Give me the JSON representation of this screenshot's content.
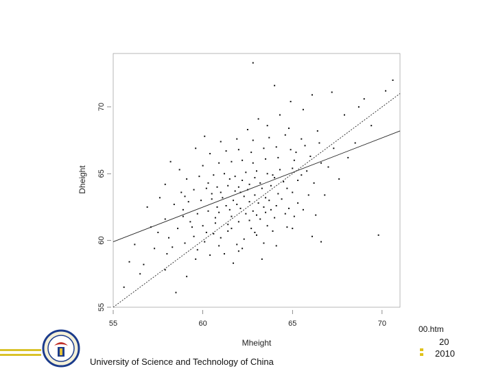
{
  "chart_data": {
    "type": "scatter",
    "xlabel": "Mheight",
    "ylabel": "Dheight",
    "xlim": [
      55,
      71
    ],
    "ylim": [
      55,
      74
    ],
    "x_ticks": [
      "55",
      "60",
      "65",
      "70"
    ],
    "y_ticks": [
      "55",
      "60",
      "65",
      "70"
    ],
    "grid": false,
    "points": [
      [
        58.5,
        56.1
      ],
      [
        59.1,
        57.3
      ],
      [
        57.9,
        57.8
      ],
      [
        56.7,
        58.2
      ],
      [
        59.6,
        58.6
      ],
      [
        60.4,
        58.9
      ],
      [
        61.2,
        59.0
      ],
      [
        62.0,
        59.2
      ],
      [
        58.3,
        59.5
      ],
      [
        59.0,
        59.8
      ],
      [
        60.1,
        59.9
      ],
      [
        61.0,
        60.2
      ],
      [
        62.3,
        60.1
      ],
      [
        63.0,
        60.4
      ],
      [
        63.9,
        60.7
      ],
      [
        57.5,
        60.6
      ],
      [
        58.6,
        60.9
      ],
      [
        59.4,
        61.0
      ],
      [
        60.0,
        61.1
      ],
      [
        60.7,
        61.3
      ],
      [
        61.4,
        61.2
      ],
      [
        62.0,
        61.4
      ],
      [
        62.6,
        61.5
      ],
      [
        63.2,
        61.6
      ],
      [
        64.0,
        61.7
      ],
      [
        65.1,
        61.8
      ],
      [
        66.3,
        61.9
      ],
      [
        57.9,
        61.6
      ],
      [
        58.9,
        61.8
      ],
      [
        59.7,
        62.0
      ],
      [
        60.3,
        62.2
      ],
      [
        60.9,
        62.1
      ],
      [
        61.5,
        62.3
      ],
      [
        62.1,
        62.4
      ],
      [
        62.8,
        62.2
      ],
      [
        63.4,
        62.5
      ],
      [
        64.1,
        62.6
      ],
      [
        64.8,
        62.4
      ],
      [
        58.4,
        62.7
      ],
      [
        59.2,
        62.9
      ],
      [
        59.9,
        63.0
      ],
      [
        60.5,
        63.1
      ],
      [
        61.1,
        63.2
      ],
      [
        61.7,
        63.0
      ],
      [
        62.3,
        63.3
      ],
      [
        62.9,
        63.4
      ],
      [
        63.5,
        63.2
      ],
      [
        64.2,
        63.5
      ],
      [
        65.0,
        63.6
      ],
      [
        65.9,
        63.4
      ],
      [
        57.6,
        63.2
      ],
      [
        58.8,
        63.6
      ],
      [
        59.5,
        63.8
      ],
      [
        60.2,
        63.9
      ],
      [
        60.8,
        64.0
      ],
      [
        61.4,
        64.1
      ],
      [
        62.0,
        64.0
      ],
      [
        62.6,
        64.2
      ],
      [
        63.2,
        64.3
      ],
      [
        63.8,
        64.1
      ],
      [
        64.5,
        64.4
      ],
      [
        65.3,
        64.5
      ],
      [
        66.2,
        64.3
      ],
      [
        59.1,
        64.6
      ],
      [
        59.8,
        64.8
      ],
      [
        60.6,
        64.9
      ],
      [
        61.2,
        65.0
      ],
      [
        61.8,
        64.8
      ],
      [
        62.4,
        65.1
      ],
      [
        63.0,
        65.2
      ],
      [
        63.6,
        65.0
      ],
      [
        64.3,
        65.3
      ],
      [
        65.0,
        65.4
      ],
      [
        65.8,
        65.2
      ],
      [
        67.0,
        65.5
      ],
      [
        58.7,
        65.3
      ],
      [
        60.0,
        65.6
      ],
      [
        60.9,
        65.8
      ],
      [
        61.6,
        65.9
      ],
      [
        62.2,
        66.0
      ],
      [
        62.8,
        65.8
      ],
      [
        63.5,
        66.1
      ],
      [
        64.2,
        66.2
      ],
      [
        65.1,
        66.0
      ],
      [
        66.0,
        66.3
      ],
      [
        60.4,
        66.5
      ],
      [
        61.3,
        66.7
      ],
      [
        62.0,
        66.8
      ],
      [
        62.7,
        66.6
      ],
      [
        63.4,
        66.9
      ],
      [
        64.1,
        67.0
      ],
      [
        64.9,
        66.8
      ],
      [
        65.7,
        67.1
      ],
      [
        61.0,
        67.4
      ],
      [
        61.9,
        67.6
      ],
      [
        62.8,
        67.5
      ],
      [
        63.7,
        67.7
      ],
      [
        64.6,
        67.9
      ],
      [
        65.5,
        67.6
      ],
      [
        62.5,
        68.3
      ],
      [
        63.6,
        68.6
      ],
      [
        64.8,
        68.4
      ],
      [
        66.4,
        68.2
      ],
      [
        63.1,
        69.1
      ],
      [
        64.3,
        69.4
      ],
      [
        65.6,
        69.8
      ],
      [
        64.9,
        70.4
      ],
      [
        66.1,
        70.9
      ],
      [
        67.2,
        71.1
      ],
      [
        68.7,
        70.0
      ],
      [
        69.4,
        68.6
      ],
      [
        70.6,
        72.0
      ],
      [
        62.8,
        73.3
      ],
      [
        64.0,
        71.6
      ],
      [
        61.4,
        60.7
      ],
      [
        62.7,
        60.9
      ],
      [
        63.6,
        61.1
      ],
      [
        60.6,
        60.5
      ],
      [
        61.9,
        59.7
      ],
      [
        63.4,
        59.8
      ],
      [
        64.7,
        61.0
      ],
      [
        65.6,
        62.3
      ],
      [
        66.8,
        63.4
      ],
      [
        67.6,
        64.6
      ],
      [
        68.1,
        66.2
      ],
      [
        56.2,
        59.7
      ],
      [
        57.1,
        61.0
      ],
      [
        57.9,
        64.2
      ],
      [
        58.2,
        65.9
      ],
      [
        59.6,
        66.9
      ],
      [
        60.1,
        67.8
      ],
      [
        56.9,
        62.5
      ],
      [
        55.6,
        56.5
      ],
      [
        55.9,
        58.4
      ],
      [
        58.0,
        59.0
      ],
      [
        59.5,
        60.3
      ],
      [
        60.2,
        60.6
      ],
      [
        61.6,
        61.8
      ],
      [
        62.4,
        62.0
      ],
      [
        63.1,
        62.8
      ],
      [
        63.7,
        63.0
      ],
      [
        64.4,
        63.1
      ],
      [
        61.0,
        63.6
      ],
      [
        61.8,
        63.7
      ],
      [
        62.5,
        63.8
      ],
      [
        63.3,
        63.9
      ],
      [
        64.0,
        64.7
      ],
      [
        60.3,
        64.3
      ],
      [
        61.5,
        64.6
      ],
      [
        62.2,
        64.5
      ],
      [
        62.9,
        64.7
      ],
      [
        63.9,
        64.9
      ],
      [
        59.3,
        61.4
      ],
      [
        60.7,
        61.7
      ],
      [
        61.3,
        62.6
      ],
      [
        62.6,
        62.9
      ],
      [
        63.5,
        62.1
      ],
      [
        64.7,
        63.9
      ],
      [
        65.5,
        64.9
      ],
      [
        66.6,
        65.8
      ],
      [
        67.3,
        66.9
      ],
      [
        68.5,
        67.3
      ],
      [
        65.2,
        66.6
      ],
      [
        66.5,
        67.3
      ],
      [
        67.9,
        69.4
      ],
      [
        69.0,
        70.6
      ],
      [
        70.2,
        71.2
      ],
      [
        69.8,
        60.4
      ],
      [
        66.1,
        60.3
      ],
      [
        66.6,
        59.9
      ],
      [
        58.9,
        62.3
      ],
      [
        59.0,
        63.3
      ],
      [
        60.5,
        63.5
      ],
      [
        61.9,
        62.7
      ],
      [
        62.1,
        63.6
      ],
      [
        63.0,
        61.9
      ],
      [
        64.6,
        62.0
      ],
      [
        65.3,
        62.8
      ],
      [
        60.8,
        62.5
      ],
      [
        61.6,
        60.9
      ],
      [
        62.9,
        60.6
      ],
      [
        63.8,
        62.3
      ],
      [
        59.7,
        59.3
      ],
      [
        60.9,
        59.6
      ],
      [
        62.2,
        59.4
      ],
      [
        58.1,
        60.2
      ],
      [
        57.3,
        59.4
      ],
      [
        56.5,
        57.5
      ],
      [
        61.7,
        58.3
      ],
      [
        63.3,
        58.6
      ],
      [
        64.1,
        59.6
      ],
      [
        65.0,
        60.9
      ]
    ],
    "fit_lines": [
      {
        "label": "ols",
        "style": "solid",
        "x": [
          55,
          71
        ],
        "y": [
          59.9,
          68.2
        ]
      },
      {
        "label": "identity",
        "style": "dotted",
        "x": [
          55,
          71
        ],
        "y": [
          55,
          71
        ]
      }
    ]
  },
  "footer": {
    "university": "University of Science and Technology of China",
    "url_fragment": "00.htm",
    "page_number": "20",
    "year": "2010",
    "accent_color": "#d9c22a"
  }
}
